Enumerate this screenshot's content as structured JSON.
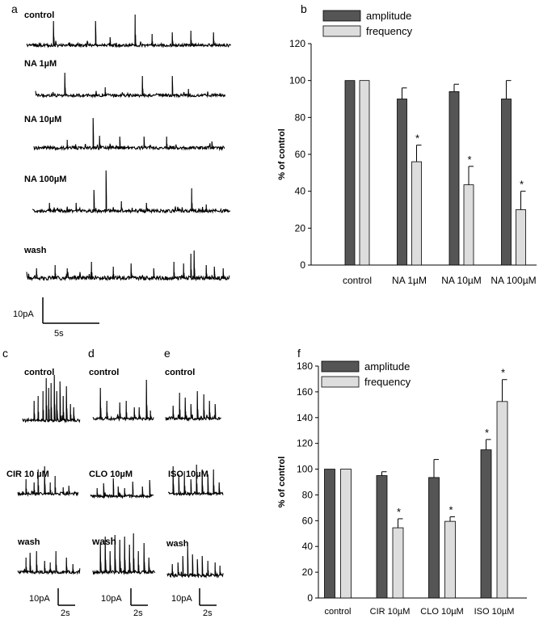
{
  "panel_letters": {
    "a": "a",
    "b": "b",
    "c": "c",
    "d": "d",
    "e": "e",
    "f": "f"
  },
  "panel_a": {
    "traces": [
      "control",
      "NA 1µM",
      "NA 10µM",
      "NA 100µM",
      "wash"
    ],
    "scale_y": "10pA",
    "scale_x": "5s"
  },
  "panel_c": {
    "traces": [
      "control",
      "CIR 10 µM",
      "wash"
    ],
    "scale_y": "10pA",
    "scale_x": "2s"
  },
  "panel_d": {
    "traces": [
      "control",
      "CLO 10µM",
      "wash"
    ],
    "scale_y": "10pA",
    "scale_x": "2s"
  },
  "panel_e": {
    "traces": [
      "control",
      "ISO 10µM",
      "wash"
    ],
    "scale_y": "10pA",
    "scale_x": "2s"
  },
  "colors": {
    "amplitude": "#555555",
    "frequency": "#dddddd",
    "trace": "#000000"
  },
  "chart_data": [
    {
      "type": "bar",
      "panel": "b",
      "categories": [
        "control",
        "NA 1µM",
        "NA 10µM",
        "NA 100µM"
      ],
      "series": [
        {
          "name": "amplitude",
          "values": [
            100,
            90,
            94,
            90
          ],
          "errors": [
            0,
            6,
            4,
            10
          ]
        },
        {
          "name": "frequency",
          "values": [
            100,
            56,
            43.5,
            30
          ],
          "errors": [
            0,
            9,
            10,
            10
          ]
        }
      ],
      "significance": [
        [
          "",
          ""
        ],
        [
          "",
          "*"
        ],
        [
          "",
          "*"
        ],
        [
          "",
          "*"
        ]
      ],
      "ylabel": "% of control",
      "ylim": [
        0,
        120
      ],
      "yticks": [
        0,
        20,
        40,
        60,
        80,
        100,
        120
      ],
      "legend_position": "top"
    },
    {
      "type": "bar",
      "panel": "f",
      "categories": [
        "control",
        "CIR 10µM",
        "CLO 10µM",
        "ISO 10µM"
      ],
      "series": [
        {
          "name": "amplitude",
          "values": [
            100,
            95,
            93.5,
            115
          ],
          "errors": [
            0,
            3,
            14,
            8
          ]
        },
        {
          "name": "frequency",
          "values": [
            100,
            54.5,
            59.5,
            152.5
          ],
          "errors": [
            0,
            7,
            3.5,
            17
          ]
        }
      ],
      "significance": [
        [
          "",
          ""
        ],
        [
          "",
          "*"
        ],
        [
          "",
          "*"
        ],
        [
          "*",
          "*"
        ]
      ],
      "ylabel": "% of control",
      "ylim": [
        0,
        180
      ],
      "yticks": [
        0,
        20,
        40,
        60,
        80,
        100,
        120,
        140,
        160,
        180
      ],
      "legend_position": "top-left"
    }
  ]
}
